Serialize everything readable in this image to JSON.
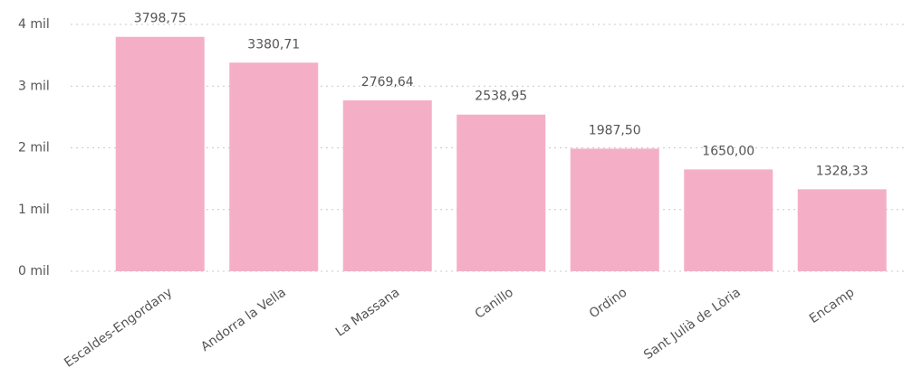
{
  "chart_data": {
    "type": "bar",
    "categories": [
      "Escaldes-Engordany",
      "Andorra la Vella",
      "La Massana",
      "Canillo",
      "Ordino",
      "Sant Julià de Lòria",
      "Encamp"
    ],
    "values": [
      3798.75,
      3380.71,
      2769.64,
      2538.95,
      1987.5,
      1650,
      1328.33
    ],
    "value_labels": [
      "3798,75",
      "3380,71",
      "2769,64",
      "2538,95",
      "1987,50",
      "1650,00",
      "1328,33"
    ],
    "color": "#f4afc7",
    "ylim": [
      0,
      4000
    ],
    "yticks": [
      {
        "value": 0,
        "label": "0 mil"
      },
      {
        "value": 1000,
        "label": "1 mil"
      },
      {
        "value": 2000,
        "label": "2 mil"
      },
      {
        "value": 3000,
        "label": "3 mil"
      },
      {
        "value": 4000,
        "label": "4 mil"
      }
    ],
    "grid": true
  }
}
